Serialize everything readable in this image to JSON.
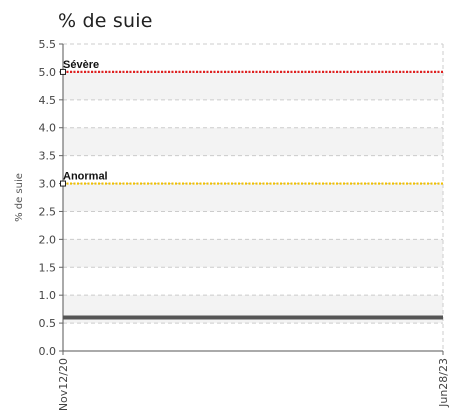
{
  "chart_data": {
    "type": "line",
    "title": "% de suie",
    "ylabel": "% de suie",
    "xlabel": "",
    "ylim": [
      0,
      5.5
    ],
    "yticks": [
      "0.0",
      "0.5",
      "1.0",
      "1.5",
      "2.0",
      "2.5",
      "3.0",
      "3.5",
      "4.0",
      "4.5",
      "5.0",
      "5.5"
    ],
    "x_range": [
      "Nov12/20",
      "Jun28/23"
    ],
    "xticks": [
      "Nov12/20",
      "Jun28/23"
    ],
    "grid": true,
    "thresholds": [
      {
        "label": "Sévère",
        "value": 5.0,
        "color": "#e02020"
      },
      {
        "label": "Anormal",
        "value": 3.0,
        "color": "#f0c000"
      }
    ],
    "series": [
      {
        "values": [
          0.6,
          0.6
        ],
        "color": "#555555"
      }
    ]
  }
}
